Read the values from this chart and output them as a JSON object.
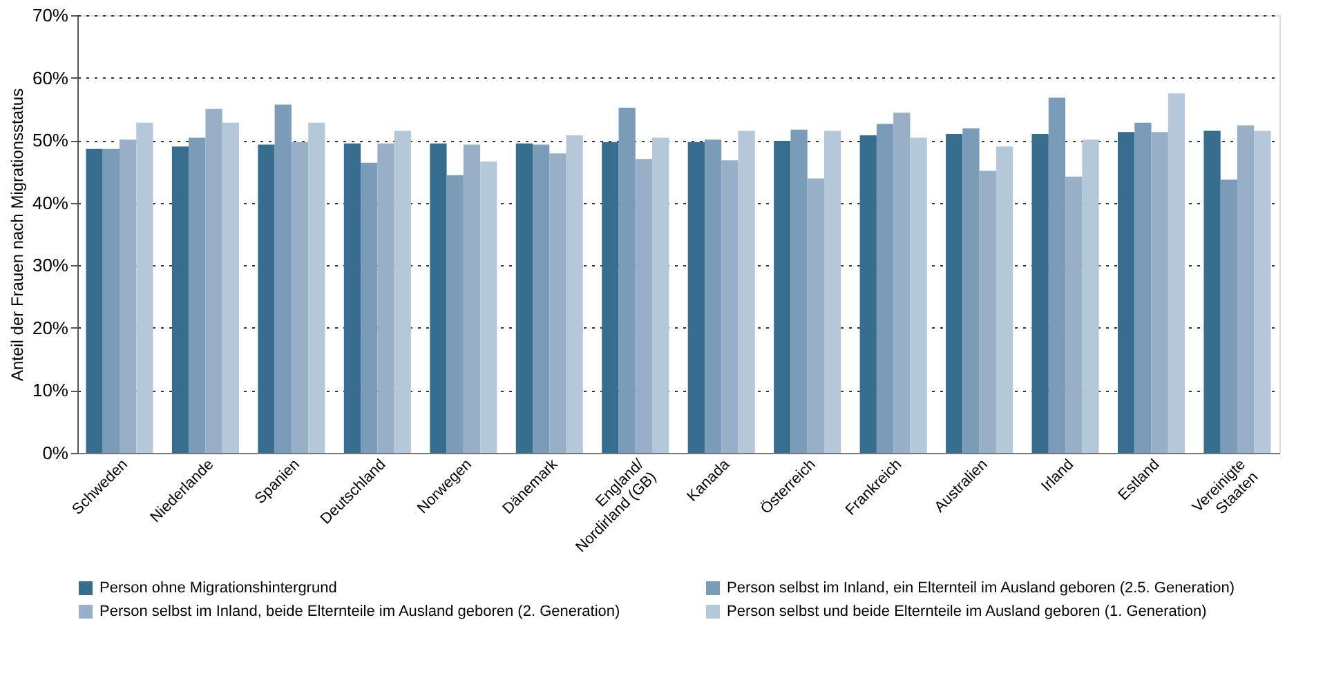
{
  "chart_data": {
    "type": "bar",
    "ylabel": "Anteil der Frauen nach Migrationsstatus",
    "categories": [
      "Schweden",
      "Niederlande",
      "Spanien",
      "Deutschland",
      "Norwegen",
      "Dänemark",
      "England/\nNordirland (GB)",
      "Kanada",
      "Österreich",
      "Frankreich",
      "Australien",
      "Irland",
      "Estland",
      "Vereinigte\nStaaten"
    ],
    "series": [
      {
        "name": "Person ohne Migrationshintergrund",
        "color": "#376d8f",
        "values": [
          48.6,
          49.0,
          49.3,
          49.5,
          49.5,
          49.5,
          49.7,
          49.7,
          49.9,
          50.8,
          51.0,
          51.0,
          51.3,
          51.5
        ]
      },
      {
        "name": "Person selbst im Inland, ein Elternteil im Ausland geboren (2.5. Generation)",
        "color": "#7a9cb8",
        "values": [
          48.6,
          50.4,
          55.7,
          46.4,
          44.4,
          49.3,
          55.2,
          50.1,
          51.7,
          52.6,
          51.9,
          56.8,
          52.8,
          43.7
        ]
      },
      {
        "name": "Person selbst im Inland, beide Elternteile im Ausland geboren (2. Generation)",
        "color": "#97b0c8",
        "values": [
          50.1,
          55.0,
          49.7,
          49.5,
          49.3,
          47.9,
          47.0,
          46.8,
          43.9,
          54.4,
          45.1,
          44.2,
          51.3,
          52.4
        ]
      },
      {
        "name": "Person selbst und beide Elternteile im Ausland geboren (1. Generation)",
        "color": "#b5c8d9",
        "values": [
          52.8,
          52.8,
          52.8,
          51.5,
          46.6,
          50.8,
          50.4,
          51.5,
          51.5,
          50.4,
          49.0,
          50.1,
          57.5,
          51.5
        ]
      }
    ],
    "ylim": [
      0,
      70
    ],
    "yticks": [
      {
        "value": 0,
        "label": "0%"
      },
      {
        "value": 10,
        "label": "10%"
      },
      {
        "value": 20,
        "label": "20%"
      },
      {
        "value": 30,
        "label": "30%"
      },
      {
        "value": 40,
        "label": "40%"
      },
      {
        "value": 50,
        "label": "50%"
      },
      {
        "value": 60,
        "label": "60%"
      },
      {
        "value": 70,
        "label": "70%"
      }
    ],
    "grid": "y",
    "legend": "bottom"
  }
}
